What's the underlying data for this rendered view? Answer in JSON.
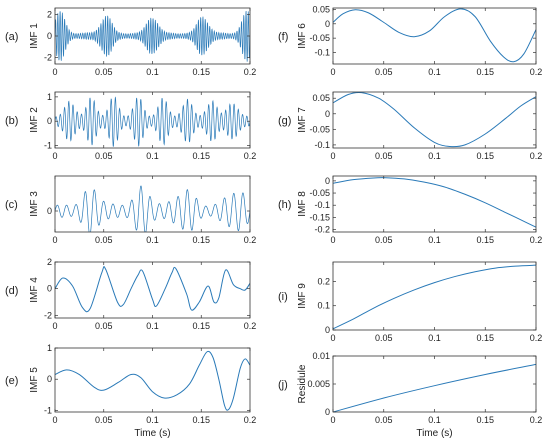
{
  "colors": {
    "line": "#2a7ab8",
    "axis": "#333333",
    "text": "#222222"
  },
  "chart_data": [
    {
      "id": "a",
      "type": "line",
      "panel_label": "(a)",
      "ylabel": "IMF 1",
      "xlabel": "",
      "xlim": [
        0,
        0.2
      ],
      "ylim": [
        -2.6,
        2.6
      ],
      "xticks": [
        0,
        0.05,
        0.1,
        0.15,
        0.2
      ],
      "xtick_labels": [
        "0",
        "0.05",
        "0.1",
        "0.15",
        "0.2"
      ],
      "yticks": [
        -2,
        0,
        2
      ],
      "ytick_labels": [
        "-2",
        "0",
        "2"
      ],
      "signal": {
        "kind": "burst",
        "freq": 430,
        "base": 0.3,
        "amp": 2.1,
        "bursts": [
          0.005,
          0.052,
          0.1,
          0.152,
          0.197
        ],
        "width": 0.0075
      }
    },
    {
      "id": "b",
      "type": "line",
      "panel_label": "(b)",
      "ylabel": "IMF 2",
      "xlabel": "",
      "xlim": [
        0,
        0.2
      ],
      "ylim": [
        -1.1,
        1.2
      ],
      "xticks": [
        0,
        0.05,
        0.1,
        0.15,
        0.2
      ],
      "xtick_labels": [
        "0",
        "0.05",
        "0.1",
        "0.15",
        "0.2"
      ],
      "yticks": [
        -1,
        0,
        1
      ],
      "ytick_labels": [
        "-1",
        "0",
        "1"
      ],
      "signal": {
        "kind": "burst",
        "freq": 230,
        "base": 0.2,
        "amp": 0.85,
        "bursts": [
          0.016,
          0.038,
          0.06,
          0.085,
          0.11,
          0.135,
          0.16,
          0.182
        ],
        "width": 0.007
      }
    },
    {
      "id": "c",
      "type": "line",
      "panel_label": "(c)",
      "ylabel": "IMF 3",
      "xlabel": "",
      "xlim": [
        0,
        0.2
      ],
      "ylim": [
        -0.6,
        1.0
      ],
      "xticks": [
        0,
        0.05,
        0.1,
        0.15,
        0.2
      ],
      "xtick_labels": [
        "0",
        "0.05",
        "0.1",
        "0.15",
        "0.2"
      ],
      "yticks": [
        0
      ],
      "ytick_labels": [
        "0"
      ],
      "signal": {
        "kind": "burst",
        "freq": 105,
        "base": 0.18,
        "amp": 0.55,
        "bursts": [
          0.038,
          0.09,
          0.133,
          0.185
        ],
        "width": 0.012
      }
    },
    {
      "id": "d",
      "type": "line",
      "panel_label": "(d)",
      "ylabel": "IMF 4",
      "xlabel": "",
      "xlim": [
        0,
        0.2
      ],
      "ylim": [
        -2.2,
        2.0
      ],
      "xticks": [
        0,
        0.05,
        0.1,
        0.15,
        0.2
      ],
      "xtick_labels": [
        "0",
        "0.05",
        "0.1",
        "0.15",
        "0.2"
      ],
      "yticks": [
        -2,
        0,
        2
      ],
      "ytick_labels": [
        "-2",
        "0",
        "2"
      ],
      "points": [
        [
          0,
          0
        ],
        [
          0.008,
          0.8
        ],
        [
          0.018,
          0.2
        ],
        [
          0.028,
          -1.4
        ],
        [
          0.036,
          -1.5
        ],
        [
          0.048,
          1.2
        ],
        [
          0.052,
          1.45
        ],
        [
          0.064,
          -1.0
        ],
        [
          0.07,
          -1.2
        ],
        [
          0.078,
          0
        ],
        [
          0.085,
          1.0
        ],
        [
          0.09,
          1.3
        ],
        [
          0.1,
          -0.8
        ],
        [
          0.104,
          -1.3
        ],
        [
          0.113,
          0
        ],
        [
          0.12,
          1.2
        ],
        [
          0.124,
          1.5
        ],
        [
          0.135,
          -0.4
        ],
        [
          0.14,
          -1.6
        ],
        [
          0.148,
          -1.0
        ],
        [
          0.157,
          0.2
        ],
        [
          0.163,
          -1.0
        ],
        [
          0.168,
          -0.7
        ],
        [
          0.175,
          1.4
        ],
        [
          0.183,
          0.3
        ],
        [
          0.19,
          0.0
        ],
        [
          0.195,
          -0.1
        ],
        [
          0.2,
          0.4
        ]
      ]
    },
    {
      "id": "e",
      "type": "line",
      "panel_label": "(e)",
      "ylabel": "IMF 5",
      "xlabel": "Time  (s)",
      "xlim": [
        0,
        0.2
      ],
      "ylim": [
        -1.05,
        1.0
      ],
      "xticks": [
        0,
        0.05,
        0.1,
        0.15,
        0.2
      ],
      "xtick_labels": [
        "0",
        "0.05",
        "0.1",
        "0.15",
        "0.2"
      ],
      "yticks": [
        -1,
        0,
        1
      ],
      "ytick_labels": [
        "-1",
        "0",
        "1"
      ],
      "points": [
        [
          0,
          0.15
        ],
        [
          0.012,
          0.3
        ],
        [
          0.025,
          0.15
        ],
        [
          0.04,
          -0.25
        ],
        [
          0.05,
          -0.35
        ],
        [
          0.065,
          -0.1
        ],
        [
          0.078,
          0.15
        ],
        [
          0.088,
          0.05
        ],
        [
          0.1,
          -0.4
        ],
        [
          0.112,
          -0.6
        ],
        [
          0.125,
          -0.5
        ],
        [
          0.138,
          -0.15
        ],
        [
          0.148,
          0.45
        ],
        [
          0.156,
          0.88
        ],
        [
          0.162,
          0.7
        ],
        [
          0.168,
          0.0
        ],
        [
          0.174,
          -0.85
        ],
        [
          0.178,
          -0.97
        ],
        [
          0.183,
          -0.6
        ],
        [
          0.19,
          0.35
        ],
        [
          0.195,
          0.65
        ],
        [
          0.2,
          0.45
        ]
      ]
    },
    {
      "id": "f",
      "type": "line",
      "panel_label": "(f)",
      "ylabel": "IMF 6",
      "xlabel": "",
      "xlim": [
        0,
        0.2
      ],
      "ylim": [
        -0.14,
        0.055
      ],
      "xticks": [
        0,
        0.05,
        0.1,
        0.15,
        0.2
      ],
      "xtick_labels": [
        "0",
        "0.05",
        "0.1",
        "0.15",
        "0.2"
      ],
      "yticks": [
        -0.1,
        -0.05,
        0,
        0.05
      ],
      "ytick_labels": [
        "-0.1",
        "-0.05",
        "0",
        "0.05"
      ],
      "points": [
        [
          0,
          0.005
        ],
        [
          0.01,
          0.035
        ],
        [
          0.022,
          0.049
        ],
        [
          0.035,
          0.038
        ],
        [
          0.05,
          0.005
        ],
        [
          0.065,
          -0.03
        ],
        [
          0.08,
          -0.045
        ],
        [
          0.095,
          -0.025
        ],
        [
          0.11,
          0.025
        ],
        [
          0.126,
          0.052
        ],
        [
          0.14,
          0.025
        ],
        [
          0.155,
          -0.06
        ],
        [
          0.168,
          -0.115
        ],
        [
          0.178,
          -0.132
        ],
        [
          0.188,
          -0.105
        ],
        [
          0.2,
          -0.02
        ]
      ]
    },
    {
      "id": "g",
      "type": "line",
      "panel_label": "(g)",
      "ylabel": "IMF 7",
      "xlabel": "",
      "xlim": [
        0,
        0.2
      ],
      "ylim": [
        -0.11,
        0.07
      ],
      "xticks": [
        0,
        0.05,
        0.1,
        0.15,
        0.2
      ],
      "xtick_labels": [
        "0",
        "0.05",
        "0.1",
        "0.15",
        "0.2"
      ],
      "yticks": [
        -0.1,
        -0.05,
        0,
        0.05
      ],
      "ytick_labels": [
        "-0.1",
        "-0.05",
        "0",
        "0.05"
      ],
      "points": [
        [
          0,
          0.035
        ],
        [
          0.015,
          0.062
        ],
        [
          0.028,
          0.068
        ],
        [
          0.045,
          0.05
        ],
        [
          0.06,
          0.015
        ],
        [
          0.08,
          -0.045
        ],
        [
          0.1,
          -0.092
        ],
        [
          0.115,
          -0.105
        ],
        [
          0.13,
          -0.1
        ],
        [
          0.15,
          -0.065
        ],
        [
          0.17,
          -0.015
        ],
        [
          0.185,
          0.025
        ],
        [
          0.2,
          0.055
        ]
      ]
    },
    {
      "id": "h",
      "type": "line",
      "panel_label": "(h)",
      "ylabel": "IMF 8",
      "xlabel": "",
      "xlim": [
        0,
        0.2
      ],
      "ylim": [
        -0.21,
        0.02
      ],
      "xticks": [
        0,
        0.05,
        0.1,
        0.15,
        0.2
      ],
      "xtick_labels": [
        "0",
        "0.05",
        "0.1",
        "0.15",
        "0.2"
      ],
      "yticks": [
        -0.2,
        -0.15,
        -0.1,
        -0.05,
        0
      ],
      "ytick_labels": [
        "-0.2",
        "-0.15",
        "-0.1",
        "-0.05",
        "0"
      ],
      "points": [
        [
          0,
          -0.01
        ],
        [
          0.02,
          0.005
        ],
        [
          0.04,
          0.012
        ],
        [
          0.052,
          0.013
        ],
        [
          0.07,
          0.008
        ],
        [
          0.09,
          -0.005
        ],
        [
          0.11,
          -0.025
        ],
        [
          0.13,
          -0.055
        ],
        [
          0.15,
          -0.09
        ],
        [
          0.17,
          -0.13
        ],
        [
          0.185,
          -0.16
        ],
        [
          0.2,
          -0.19
        ]
      ]
    },
    {
      "id": "i",
      "type": "line",
      "panel_label": "(i)",
      "ylabel": "IMF 9",
      "xlabel": "",
      "xlim": [
        0,
        0.2
      ],
      "ylim": [
        0,
        0.28
      ],
      "xticks": [
        0,
        0.05,
        0.1,
        0.15,
        0.2
      ],
      "xtick_labels": [
        "0",
        "0.05",
        "0.1",
        "0.15",
        "0.2"
      ],
      "yticks": [
        0,
        0.1,
        0.2
      ],
      "ytick_labels": [
        "0",
        "0.1",
        "0.2"
      ],
      "points": [
        [
          0,
          0.005
        ],
        [
          0.02,
          0.045
        ],
        [
          0.04,
          0.09
        ],
        [
          0.06,
          0.13
        ],
        [
          0.08,
          0.165
        ],
        [
          0.1,
          0.195
        ],
        [
          0.12,
          0.22
        ],
        [
          0.14,
          0.24
        ],
        [
          0.16,
          0.255
        ],
        [
          0.18,
          0.263
        ],
        [
          0.2,
          0.267
        ]
      ]
    },
    {
      "id": "j",
      "type": "line",
      "panel_label": "(j)",
      "ylabel": "Residule",
      "xlabel": "Time  (s)",
      "xlim": [
        0,
        0.2
      ],
      "ylim": [
        0,
        0.01
      ],
      "xticks": [
        0,
        0.05,
        0.1,
        0.15,
        0.2
      ],
      "xtick_labels": [
        "0",
        "0.05",
        "0.1",
        "0.15",
        "0.2"
      ],
      "yticks": [
        0,
        0.005,
        0.01
      ],
      "ytick_labels": [
        "0",
        "0.005",
        "0.01"
      ],
      "points": [
        [
          0,
          0.0
        ],
        [
          0.05,
          0.0025
        ],
        [
          0.1,
          0.0047
        ],
        [
          0.15,
          0.0067
        ],
        [
          0.2,
          0.0085
        ]
      ]
    }
  ]
}
